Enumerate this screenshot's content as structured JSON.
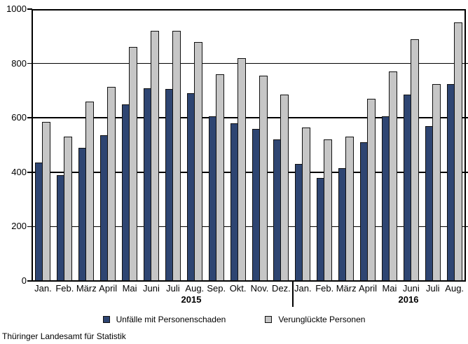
{
  "footer": {
    "source": "Thüringer Landesamt für Statistik"
  },
  "y_axis": {
    "unit": ""
  },
  "chart_data": {
    "type": "bar",
    "title": "",
    "xlabel": "",
    "ylabel": "",
    "ylim": [
      0,
      1000
    ],
    "yticks": [
      0,
      200,
      400,
      600,
      800,
      1000
    ],
    "grid": "horizontal",
    "legend_position": "bottom",
    "categories": [
      "Jan.",
      "Feb.",
      "März",
      "April",
      "Mai",
      "Juni",
      "Juli",
      "Aug.",
      "Sep.",
      "Okt.",
      "Nov.",
      "Dez.",
      "Jan.",
      "Feb.",
      "März",
      "April",
      "Mai",
      "Juni",
      "Juli",
      "Aug."
    ],
    "year_labels": [
      "2015",
      "2016"
    ],
    "year_groups": [
      {
        "label": "2015",
        "months": 12
      },
      {
        "label": "2016",
        "months": 8
      }
    ],
    "series": [
      {
        "name": "Unfälle mit Personenschaden",
        "color": "#2e4572",
        "values": [
          435,
          390,
          490,
          535,
          650,
          710,
          705,
          690,
          605,
          580,
          560,
          520,
          430,
          380,
          415,
          510,
          605,
          685,
          570,
          725
        ]
      },
      {
        "name": "Verunglückte Personen",
        "color": "#c6c6c6",
        "values": [
          585,
          530,
          660,
          715,
          860,
          920,
          920,
          880,
          760,
          820,
          755,
          685,
          565,
          520,
          530,
          670,
          770,
          890,
          725,
          950
        ]
      }
    ]
  }
}
